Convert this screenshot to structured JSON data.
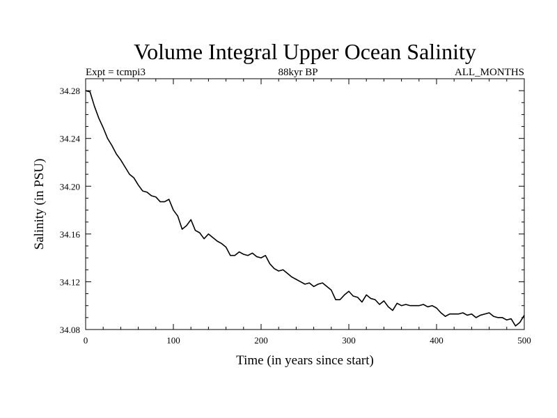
{
  "chart_data": {
    "type": "line",
    "title": "Volume Integral Upper Ocean Salinity",
    "header_left": "Expt = tcmpi3",
    "header_center": "88kyr BP",
    "header_right": "ALL_MONTHS",
    "xlabel": "Time (in years since start)",
    "ylabel": "Salinity (in PSU)",
    "xlim": [
      0,
      500
    ],
    "ylim": [
      34.08,
      34.29
    ],
    "x_ticks": [
      0,
      100,
      200,
      300,
      400,
      500
    ],
    "y_ticks": [
      "34.08",
      "34.12",
      "34.16",
      "34.20",
      "34.24",
      "34.28"
    ],
    "grid": false,
    "line_color": "#000000",
    "series": [
      {
        "name": "Salinity",
        "x": [
          0,
          5,
          10,
          15,
          20,
          25,
          30,
          35,
          40,
          45,
          50,
          55,
          60,
          65,
          70,
          75,
          80,
          85,
          90,
          95,
          100,
          105,
          110,
          115,
          120,
          125,
          130,
          135,
          140,
          145,
          150,
          155,
          160,
          165,
          170,
          175,
          180,
          185,
          190,
          195,
          200,
          205,
          210,
          215,
          220,
          225,
          230,
          235,
          240,
          245,
          250,
          255,
          260,
          265,
          270,
          275,
          280,
          285,
          290,
          295,
          300,
          305,
          310,
          315,
          320,
          325,
          330,
          335,
          340,
          345,
          350,
          355,
          360,
          365,
          370,
          375,
          380,
          385,
          390,
          395,
          400,
          405,
          410,
          415,
          420,
          425,
          430,
          435,
          440,
          445,
          450,
          455,
          460,
          465,
          470,
          475,
          480,
          485,
          490,
          495,
          500
        ],
        "values": [
          34.28,
          34.279,
          34.267,
          34.257,
          34.249,
          34.24,
          34.234,
          34.227,
          34.222,
          34.216,
          34.21,
          34.207,
          34.201,
          34.196,
          34.195,
          34.192,
          34.191,
          34.187,
          34.187,
          34.189,
          34.18,
          34.175,
          34.164,
          34.167,
          34.172,
          34.163,
          34.161,
          34.156,
          34.16,
          34.157,
          34.154,
          34.152,
          34.149,
          34.142,
          34.142,
          34.145,
          34.143,
          34.142,
          34.144,
          34.141,
          34.14,
          34.142,
          34.135,
          34.131,
          34.129,
          34.13,
          34.127,
          34.124,
          34.122,
          34.12,
          34.118,
          34.119,
          34.116,
          34.118,
          34.119,
          34.116,
          34.113,
          34.105,
          34.105,
          34.109,
          34.112,
          34.108,
          34.107,
          34.103,
          34.109,
          34.106,
          34.105,
          34.101,
          34.104,
          34.099,
          34.096,
          34.102,
          34.1,
          34.101,
          34.1,
          34.1,
          34.1,
          34.101,
          34.099,
          34.1,
          34.098,
          34.094,
          34.091,
          34.093,
          34.093,
          34.093,
          34.094,
          34.092,
          34.093,
          34.09,
          34.092,
          34.093,
          34.094,
          34.091,
          34.09,
          34.09,
          34.088,
          34.089,
          34.083,
          34.086,
          34.092
        ]
      }
    ]
  }
}
